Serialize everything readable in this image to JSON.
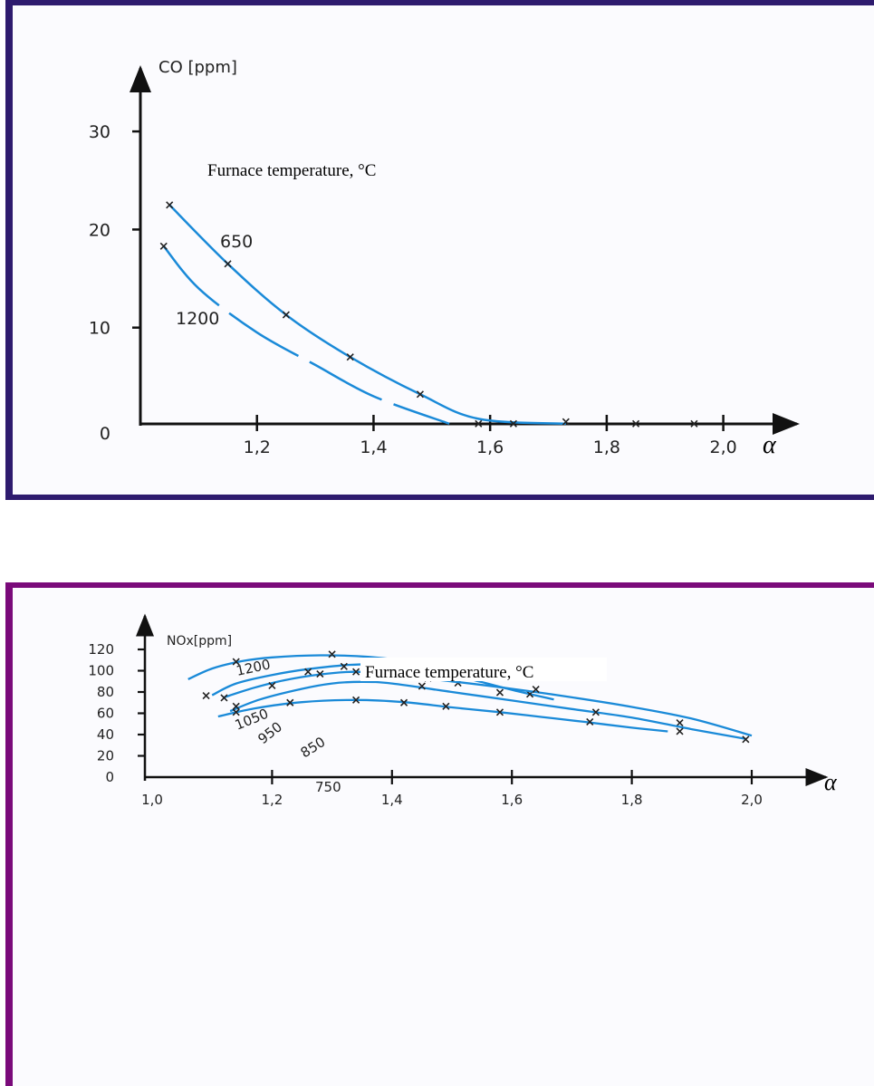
{
  "chart_data": [
    {
      "type": "line",
      "ylabel": "CO [ppm]",
      "xlabel": "α",
      "annotation": "Furnace temperature, °C",
      "xlim": [
        1.0,
        2.1
      ],
      "ylim": [
        0,
        35
      ],
      "x_ticks": [
        "1,2",
        "1,4",
        "1,6",
        "1,8",
        "2,0"
      ],
      "y_ticks": [
        "0",
        "10",
        "20",
        "30"
      ],
      "series": [
        {
          "name": "650",
          "color": "#1a8ad8",
          "style": "solid",
          "x": [
            1.05,
            1.15,
            1.25,
            1.36,
            1.48,
            1.58,
            1.73
          ],
          "y": [
            22.5,
            16.5,
            11.3,
            7.0,
            3.2,
            0.7,
            0.2
          ],
          "markers": [
            [
              1.05,
              22.5
            ],
            [
              1.15,
              16.5
            ],
            [
              1.25,
              11.3
            ],
            [
              1.36,
              7.0
            ],
            [
              1.48,
              3.2
            ],
            [
              1.58,
              0.2
            ],
            [
              1.64,
              0.2
            ],
            [
              1.73,
              0.4
            ],
            [
              1.85,
              0.2
            ],
            [
              1.95,
              0.2
            ]
          ]
        },
        {
          "name": "1200",
          "color": "#1a8ad8",
          "style": "dashed",
          "x": [
            1.04,
            1.1,
            1.2,
            1.3,
            1.4,
            1.53
          ],
          "y": [
            18.3,
            14.0,
            9.5,
            6.2,
            3.0,
            0.2
          ],
          "markers": [
            [
              1.04,
              18.3
            ]
          ]
        }
      ]
    },
    {
      "type": "line",
      "ylabel": "NOx[ppm]",
      "xlabel": "α",
      "annotation": "Furnace temperature, °C",
      "xlim": [
        1.0,
        2.05
      ],
      "ylim": [
        0,
        125
      ],
      "x_ticks": [
        "1,0",
        "1,2",
        "1,4",
        "1,6",
        "1,8",
        "2,0"
      ],
      "y_ticks": [
        "0",
        "20",
        "40",
        "60",
        "80",
        "100",
        "120"
      ],
      "series": [
        {
          "name": "1200",
          "color": "#1a8ad8",
          "x": [
            1.06,
            1.1,
            1.15,
            1.2,
            1.28,
            1.36,
            1.45,
            1.52,
            1.58
          ],
          "y": [
            92,
            102,
            109,
            112.5,
            114.5,
            113,
            107,
            99,
            92
          ],
          "markers": [
            [
              1.14,
              108.5
            ],
            [
              1.3,
              115.5
            ],
            [
              1.49,
              102
            ]
          ]
        },
        {
          "name": "1050",
          "color": "#1a8ad8",
          "x": [
            1.1,
            1.14,
            1.2,
            1.26,
            1.33,
            1.39,
            1.46,
            1.53,
            1.6,
            1.67
          ],
          "y": [
            77,
            88,
            96,
            101.5,
            105.5,
            105.5,
            100,
            92,
            82,
            73
          ],
          "markers": [
            [
              1.09,
              76.5
            ],
            [
              1.26,
              99
            ],
            [
              1.32,
              104
            ],
            [
              1.39,
              105.5
            ],
            [
              1.46,
              93
            ],
            [
              1.51,
              88.5
            ],
            [
              1.63,
              78
            ]
          ]
        },
        {
          "name": "950",
          "color": "#1a8ad8",
          "x": [
            1.12,
            1.17,
            1.22,
            1.28,
            1.34,
            1.4,
            1.5,
            1.6,
            1.7,
            1.8,
            1.9,
            2.0
          ],
          "y": [
            75,
            84,
            91,
            96.5,
            99,
            96,
            90,
            83,
            75,
            66,
            55,
            39
          ],
          "markers": [
            [
              1.12,
              74.5
            ],
            [
              1.2,
              86
            ],
            [
              1.28,
              97
            ],
            [
              1.34,
              99
            ],
            [
              1.49,
              96
            ],
            [
              1.64,
              82.5
            ],
            [
              1.88,
              51
            ]
          ]
        },
        {
          "name": "850",
          "color": "#1a8ad8",
          "x": [
            1.13,
            1.18,
            1.25,
            1.3,
            1.35,
            1.4,
            1.5,
            1.6,
            1.7,
            1.8,
            1.9,
            1.99
          ],
          "y": [
            62,
            73,
            83,
            88,
            89.5,
            88,
            80,
            72,
            64,
            56,
            45,
            36
          ],
          "markers": [
            [
              1.14,
              66.5
            ],
            [
              1.45,
              85.5
            ],
            [
              1.58,
              79.5
            ],
            [
              1.74,
              61
            ],
            [
              1.99,
              35.5
            ]
          ]
        },
        {
          "name": "750",
          "color": "#1a8ad8",
          "x": [
            1.11,
            1.17,
            1.25,
            1.34,
            1.42,
            1.5,
            1.58,
            1.65,
            1.72,
            1.8,
            1.86
          ],
          "y": [
            57,
            64.5,
            70.5,
            72.5,
            70.5,
            65.5,
            61,
            56.5,
            52,
            46.5,
            43
          ],
          "markers": [
            [
              1.14,
              61
            ],
            [
              1.23,
              70
            ],
            [
              1.34,
              72.5
            ],
            [
              1.42,
              70
            ],
            [
              1.49,
              66.5
            ],
            [
              1.58,
              61
            ],
            [
              1.73,
              52
            ],
            [
              1.88,
              43
            ]
          ]
        }
      ]
    }
  ]
}
